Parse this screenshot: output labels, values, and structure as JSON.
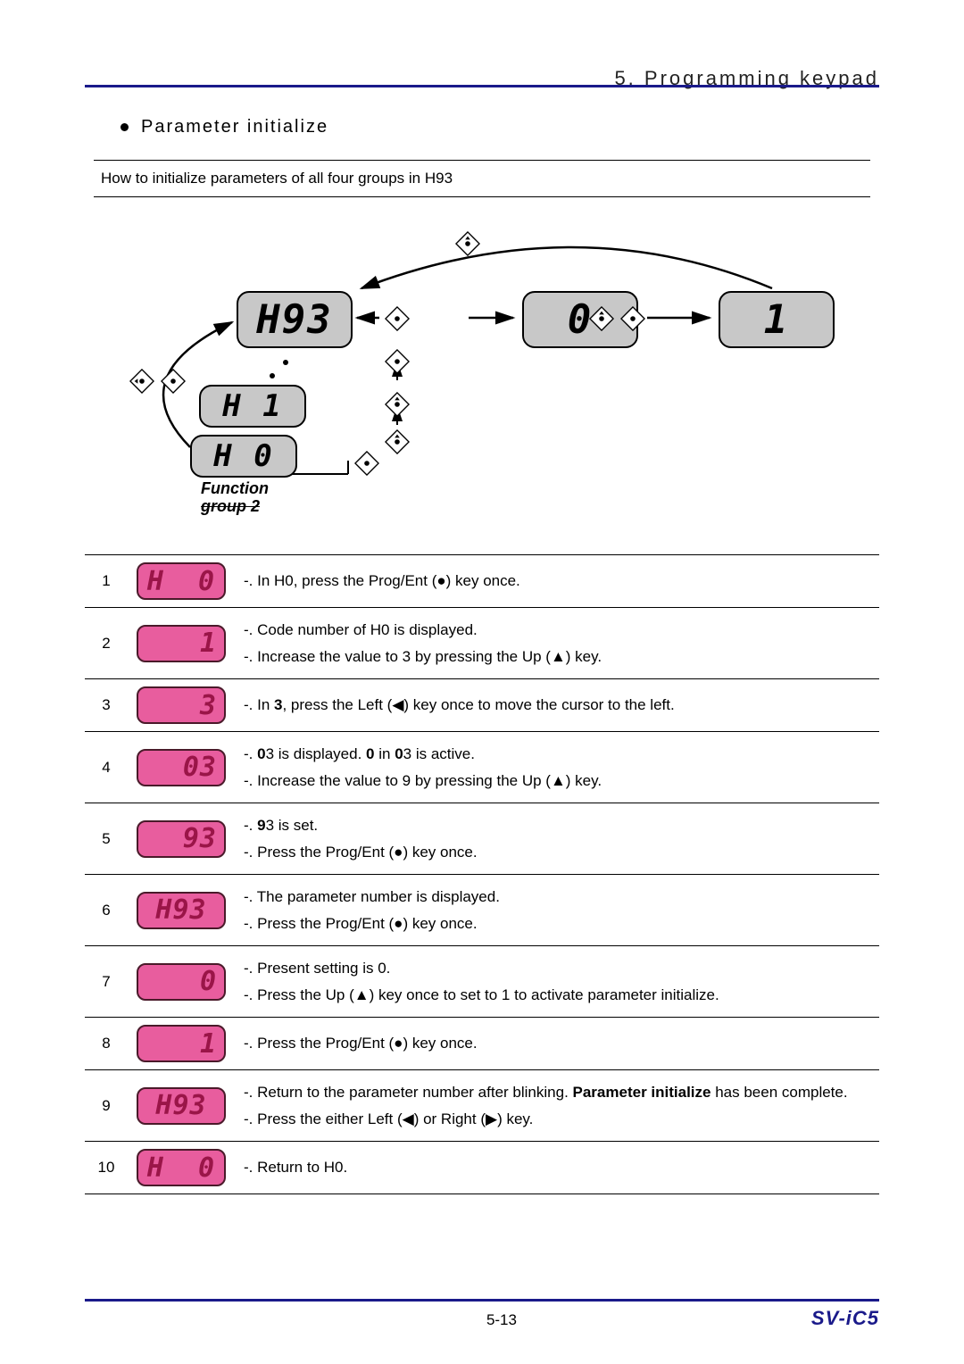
{
  "chapter_title": "5. Programming keypad",
  "section_title": "Parameter initialize",
  "subheading": "How to initialize parameters of all four groups in H93",
  "diagram": {
    "boxes": {
      "h93": "H93",
      "zero": "0",
      "one": "1",
      "h1": "H  1",
      "h0": "H  0"
    },
    "fn_label_line1": "Function",
    "fn_label_line2": "group 2"
  },
  "steps": [
    {
      "n": "1",
      "display": "H  0",
      "wide": true,
      "lines": [
        "-. In H0, press the Prog/Ent (●) key once."
      ]
    },
    {
      "n": "2",
      "display": "1",
      "lines": [
        "-. Code number of H0 is displayed.",
        "-. Increase the value to 3 by pressing the Up (▲) key."
      ]
    },
    {
      "n": "3",
      "display": "3",
      "lines": [
        "-. In <b>3</b>, press the Left (◀) key once to move the cursor to the left."
      ]
    },
    {
      "n": "4",
      "display": "03",
      "lines": [
        "-. <b>0</b>3 is displayed. <b>0</b> in <b>0</b>3 is active.",
        "-. Increase the value to 9 by pressing the Up (▲) key."
      ]
    },
    {
      "n": "5",
      "display": "93",
      "lines": [
        "-. <b>9</b>3 is set.",
        "-. Press the Prog/Ent (●) key once."
      ]
    },
    {
      "n": "6",
      "display": "H93",
      "wide": true,
      "lines": [
        "-. The parameter number is displayed.",
        "-. Press the Prog/Ent (●) key once."
      ]
    },
    {
      "n": "7",
      "display": "0",
      "lines": [
        "-. Present setting is 0.",
        "-. Press the Up (▲) key once to set to 1 to activate parameter initialize."
      ]
    },
    {
      "n": "8",
      "display": "1",
      "lines": [
        "-. Press the Prog/Ent (●) key once."
      ]
    },
    {
      "n": "9",
      "display": "H93",
      "wide": true,
      "lines": [
        "-. Return to the parameter number after blinking. <b>Parameter initialize</b> has been complete.",
        "-. Press the either Left (◀) or Right (▶) key."
      ]
    },
    {
      "n": "10",
      "display": "H  0",
      "wide": true,
      "lines": [
        "-. Return to H0."
      ]
    }
  ],
  "footer": {
    "page": "5-13",
    "model": "SV-iC5"
  },
  "colors": {
    "rule": "#1a1a8a",
    "lcd_grey_bg": "#c8c8c8",
    "lcd_pink_bg": "#e85d9e",
    "lcd_pink_text": "#9a1548",
    "model_text": "#1a1a8a"
  }
}
